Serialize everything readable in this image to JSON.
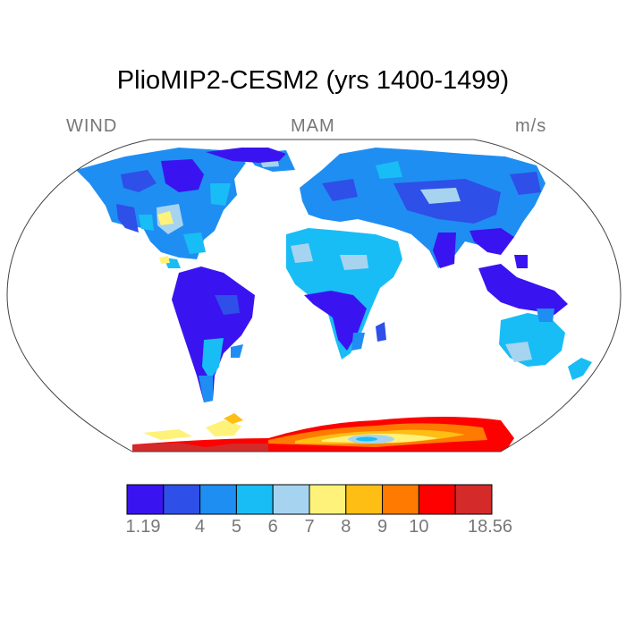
{
  "title": "PlioMIP2-CESM2 (yrs 1400-1499)",
  "left_label": "WIND",
  "center_label": "MAM",
  "right_label": "m/s",
  "colorbar": {
    "colors": [
      "#3a14f0",
      "#2e4fe8",
      "#1f8ef2",
      "#18bdf5",
      "#a6d4f0",
      "#fff27a",
      "#ffbe14",
      "#ff7a00",
      "#ff0000",
      "#d42a2a"
    ],
    "labels": [
      "1.19",
      "4",
      "5",
      "6",
      "7",
      "8",
      "9",
      "10",
      "18.56"
    ]
  }
}
